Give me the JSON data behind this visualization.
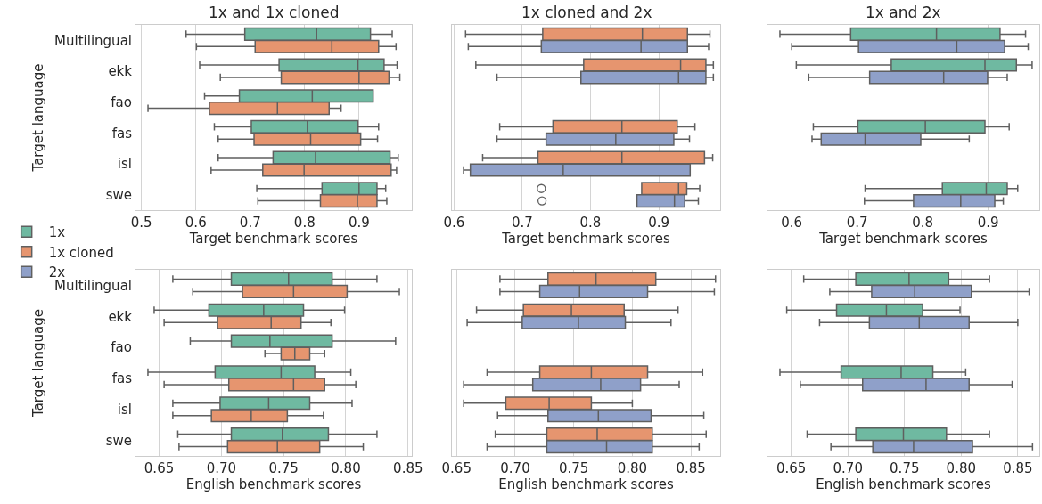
{
  "chart_data": [
    {
      "type": "box",
      "orientation": "horizontal",
      "title": "1x and 1x cloned",
      "xlabel": "Target benchmark scores",
      "ylabel": "Target language",
      "categories": [
        "Multilingual",
        "ekk",
        "fao",
        "fas",
        "isl",
        "swe"
      ],
      "xlim": [
        0.489,
        0.997
      ],
      "xticks": [
        0.5,
        0.6,
        0.7,
        0.8,
        0.9
      ],
      "grid": "x",
      "legend": "left",
      "series": [
        {
          "name": "1x",
          "color": "#6fb9a1",
          "boxes": [
            {
              "low": 0.582,
              "q1": 0.69,
              "median": 0.822,
              "q3": 0.921,
              "high": 0.961
            },
            {
              "low": 0.607,
              "q1": 0.753,
              "median": 0.898,
              "q3": 0.946,
              "high": 0.97
            },
            {
              "low": 0.616,
              "q1": 0.68,
              "median": 0.814,
              "q3": 0.926,
              "high": 0.926
            },
            {
              "low": 0.634,
              "q1": 0.702,
              "median": 0.805,
              "q3": 0.898,
              "high": 0.936
            },
            {
              "low": 0.641,
              "q1": 0.742,
              "median": 0.82,
              "q3": 0.957,
              "high": 0.972
            },
            {
              "low": 0.712,
              "q1": 0.832,
              "median": 0.9,
              "q3": 0.933,
              "high": 0.949
            }
          ]
        },
        {
          "name": "1x cloned",
          "color": "#e6956f",
          "boxes": [
            {
              "low": 0.601,
              "q1": 0.709,
              "median": 0.85,
              "q3": 0.936,
              "high": 0.968
            },
            {
              "low": 0.645,
              "q1": 0.757,
              "median": 0.9,
              "q3": 0.955,
              "high": 0.975
            },
            {
              "low": 0.512,
              "q1": 0.625,
              "median": 0.75,
              "q3": 0.845,
              "high": 0.867
            },
            {
              "low": 0.641,
              "q1": 0.707,
              "median": 0.811,
              "q3": 0.903,
              "high": 0.934
            },
            {
              "low": 0.628,
              "q1": 0.723,
              "median": 0.799,
              "q3": 0.959,
              "high": 0.969
            },
            {
              "low": 0.714,
              "q1": 0.829,
              "median": 0.897,
              "q3": 0.933,
              "high": 0.951
            }
          ]
        }
      ]
    },
    {
      "type": "box",
      "orientation": "horizontal",
      "title": "1x cloned and 2x",
      "xlabel": "Target benchmark scores",
      "categories": [
        "Multilingual",
        "ekk",
        "fao",
        "fas",
        "isl",
        "swe"
      ],
      "xlim": [
        0.597,
        0.99
      ],
      "xticks": [
        0.6,
        0.7,
        0.8,
        0.9
      ],
      "grid": "x",
      "tick_labels": "x",
      "series": [
        {
          "name": "1x cloned",
          "color": "#e6956f",
          "boxes": [
            {
              "low": 0.617,
              "q1": 0.73,
              "median": 0.876,
              "q3": 0.942,
              "high": 0.975
            },
            {
              "low": 0.632,
              "q1": 0.79,
              "median": 0.932,
              "q3": 0.969,
              "high": 0.98
            },
            null,
            {
              "low": 0.667,
              "q1": 0.745,
              "median": 0.846,
              "q3": 0.927,
              "high": 0.953
            },
            {
              "low": 0.642,
              "q1": 0.723,
              "median": 0.846,
              "q3": 0.967,
              "high": 0.979
            },
            {
              "low": 0.875,
              "q1": 0.875,
              "median": 0.929,
              "q3": 0.941,
              "high": 0.96,
              "outliers": [
                0.728
              ]
            }
          ]
        },
        {
          "name": "2x",
          "color": "#8fa0c9",
          "boxes": [
            {
              "low": 0.621,
              "q1": 0.728,
              "median": 0.874,
              "q3": 0.942,
              "high": 0.973
            },
            {
              "low": 0.663,
              "q1": 0.786,
              "median": 0.929,
              "q3": 0.969,
              "high": 0.98
            },
            null,
            {
              "low": 0.663,
              "q1": 0.735,
              "median": 0.837,
              "q3": 0.922,
              "high": 0.945
            },
            {
              "low": 0.614,
              "q1": 0.624,
              "median": 0.76,
              "q3": 0.946,
              "high": 0.946
            },
            {
              "low": 0.868,
              "q1": 0.868,
              "median": 0.923,
              "q3": 0.938,
              "high": 0.958,
              "outliers": [
                0.729
              ]
            }
          ]
        }
      ]
    },
    {
      "type": "box",
      "orientation": "horizontal",
      "title": "1x and 2x",
      "xlabel": "Target benchmark scores",
      "categories": [
        "Multilingual",
        "ekk",
        "fao",
        "fas",
        "isl",
        "swe"
      ],
      "xlim": [
        0.563,
        0.978
      ],
      "xticks": [
        0.6,
        0.7,
        0.8,
        0.9
      ],
      "grid": "x",
      "tick_labels": "x",
      "series": [
        {
          "name": "1x",
          "color": "#6fb9a1",
          "boxes": [
            {
              "low": 0.582,
              "q1": 0.69,
              "median": 0.821,
              "q3": 0.918,
              "high": 0.957
            },
            {
              "low": 0.607,
              "q1": 0.752,
              "median": 0.895,
              "q3": 0.943,
              "high": 0.967
            },
            null,
            {
              "low": 0.633,
              "q1": 0.701,
              "median": 0.804,
              "q3": 0.895,
              "high": 0.932
            },
            null,
            {
              "low": 0.712,
              "q1": 0.83,
              "median": 0.897,
              "q3": 0.929,
              "high": 0.945
            }
          ]
        },
        {
          "name": "2x",
          "color": "#8fa0c9",
          "boxes": [
            {
              "low": 0.6,
              "q1": 0.702,
              "median": 0.852,
              "q3": 0.925,
              "high": 0.961
            },
            {
              "low": 0.626,
              "q1": 0.719,
              "median": 0.832,
              "q3": 0.899,
              "high": 0.929
            },
            null,
            {
              "low": 0.631,
              "q1": 0.645,
              "median": 0.712,
              "q3": 0.797,
              "high": 0.871
            },
            null,
            {
              "low": 0.711,
              "q1": 0.786,
              "median": 0.858,
              "q3": 0.91,
              "high": 0.923
            }
          ]
        }
      ]
    },
    {
      "type": "box",
      "orientation": "horizontal",
      "xlabel": "English benchmark scores",
      "ylabel": "Target language",
      "categories": [
        "Multilingual",
        "ekk",
        "fao",
        "fas",
        "isl",
        "swe"
      ],
      "xlim": [
        0.631,
        0.853
      ],
      "xticks": [
        {
          "value": 0.65,
          "label": "0.65"
        },
        {
          "value": 0.7,
          "label": "0.70"
        },
        {
          "value": 0.75,
          "label": "0.75"
        },
        {
          "value": 0.8,
          "label": "0.80"
        },
        {
          "value": 0.85,
          "label": "0.85"
        }
      ],
      "grid": "x",
      "series": [
        {
          "name": "1x",
          "color": "#6fb9a1",
          "boxes": [
            {
              "low": 0.661,
              "q1": 0.708,
              "median": 0.754,
              "q3": 0.789,
              "high": 0.825
            },
            {
              "low": 0.646,
              "q1": 0.69,
              "median": 0.734,
              "q3": 0.766,
              "high": 0.799
            },
            {
              "low": 0.675,
              "q1": 0.708,
              "median": 0.739,
              "q3": 0.789,
              "high": 0.84
            },
            {
              "low": 0.641,
              "q1": 0.695,
              "median": 0.748,
              "q3": 0.775,
              "high": 0.804
            },
            {
              "low": 0.661,
              "q1": 0.699,
              "median": 0.738,
              "q3": 0.771,
              "high": 0.805
            },
            {
              "low": 0.665,
              "q1": 0.708,
              "median": 0.749,
              "q3": 0.786,
              "high": 0.825
            }
          ]
        },
        {
          "name": "1x cloned",
          "color": "#e6956f",
          "boxes": [
            {
              "low": 0.677,
              "q1": 0.717,
              "median": 0.758,
              "q3": 0.801,
              "high": 0.843
            },
            {
              "low": 0.654,
              "q1": 0.697,
              "median": 0.74,
              "q3": 0.764,
              "high": 0.788
            },
            {
              "low": 0.735,
              "q1": 0.748,
              "median": 0.759,
              "q3": 0.771,
              "high": 0.783
            },
            {
              "low": 0.654,
              "q1": 0.706,
              "median": 0.758,
              "q3": 0.783,
              "high": 0.808
            },
            {
              "low": 0.661,
              "q1": 0.692,
              "median": 0.724,
              "q3": 0.753,
              "high": 0.782
            },
            {
              "low": 0.666,
              "q1": 0.705,
              "median": 0.745,
              "q3": 0.779,
              "high": 0.814
            }
          ]
        }
      ]
    },
    {
      "type": "box",
      "orientation": "horizontal",
      "xlabel": "English benchmark scores",
      "categories": [
        "Multilingual",
        "ekk",
        "fao",
        "fas",
        "isl",
        "swe"
      ],
      "xlim": [
        0.646,
        0.875
      ],
      "xticks": [
        {
          "value": 0.65,
          "label": "0.65"
        },
        {
          "value": 0.7,
          "label": "0.70"
        },
        {
          "value": 0.75,
          "label": "0.75"
        },
        {
          "value": 0.8,
          "label": "0.80"
        },
        {
          "value": 0.85,
          "label": "0.85"
        }
      ],
      "grid": "x",
      "tick_labels": "x",
      "series": [
        {
          "name": "1x cloned",
          "color": "#e6956f",
          "boxes": [
            {
              "low": 0.687,
              "q1": 0.728,
              "median": 0.769,
              "q3": 0.82,
              "high": 0.871
            },
            {
              "low": 0.667,
              "q1": 0.707,
              "median": 0.748,
              "q3": 0.793,
              "high": 0.839
            },
            null,
            {
              "low": 0.676,
              "q1": 0.721,
              "median": 0.765,
              "q3": 0.813,
              "high": 0.86
            },
            {
              "low": 0.656,
              "q1": 0.692,
              "median": 0.729,
              "q3": 0.765,
              "high": 0.8
            },
            {
              "low": 0.683,
              "q1": 0.727,
              "median": 0.77,
              "q3": 0.817,
              "high": 0.863
            }
          ]
        },
        {
          "name": "2x",
          "color": "#8fa0c9",
          "boxes": [
            {
              "low": 0.687,
              "q1": 0.721,
              "median": 0.755,
              "q3": 0.813,
              "high": 0.87
            },
            {
              "low": 0.659,
              "q1": 0.706,
              "median": 0.754,
              "q3": 0.794,
              "high": 0.833
            },
            null,
            {
              "low": 0.656,
              "q1": 0.715,
              "median": 0.773,
              "q3": 0.807,
              "high": 0.84
            },
            {
              "low": 0.685,
              "q1": 0.728,
              "median": 0.771,
              "q3": 0.816,
              "high": 0.861
            },
            {
              "low": 0.676,
              "q1": 0.727,
              "median": 0.778,
              "q3": 0.817,
              "high": 0.857
            }
          ]
        }
      ]
    },
    {
      "type": "box",
      "orientation": "horizontal",
      "xlabel": "English benchmark scores",
      "categories": [
        "Multilingual",
        "ekk",
        "fao",
        "fas",
        "isl",
        "swe"
      ],
      "xlim": [
        0.629,
        0.869
      ],
      "xticks": [
        {
          "value": 0.65,
          "label": "0.65"
        },
        {
          "value": 0.7,
          "label": "0.70"
        },
        {
          "value": 0.75,
          "label": "0.75"
        },
        {
          "value": 0.8,
          "label": "0.80"
        },
        {
          "value": 0.85,
          "label": "0.85"
        }
      ],
      "grid": "x",
      "tick_labels": "x",
      "series": [
        {
          "name": "1x",
          "color": "#6fb9a1",
          "boxes": [
            {
              "low": 0.661,
              "q1": 0.707,
              "median": 0.754,
              "q3": 0.789,
              "high": 0.825
            },
            {
              "low": 0.646,
              "q1": 0.69,
              "median": 0.734,
              "q3": 0.766,
              "high": 0.799
            },
            null,
            {
              "low": 0.64,
              "q1": 0.694,
              "median": 0.747,
              "q3": 0.775,
              "high": 0.804
            },
            null,
            {
              "low": 0.664,
              "q1": 0.707,
              "median": 0.749,
              "q3": 0.787,
              "high": 0.825
            }
          ]
        },
        {
          "name": "2x",
          "color": "#8fa0c9",
          "boxes": [
            {
              "low": 0.684,
              "q1": 0.721,
              "median": 0.759,
              "q3": 0.809,
              "high": 0.86
            },
            {
              "low": 0.675,
              "q1": 0.719,
              "median": 0.763,
              "q3": 0.807,
              "high": 0.85
            },
            null,
            {
              "low": 0.658,
              "q1": 0.713,
              "median": 0.769,
              "q3": 0.807,
              "high": 0.845
            },
            null,
            {
              "low": 0.685,
              "q1": 0.722,
              "median": 0.758,
              "q3": 0.81,
              "high": 0.863
            }
          ]
        }
      ]
    }
  ]
}
